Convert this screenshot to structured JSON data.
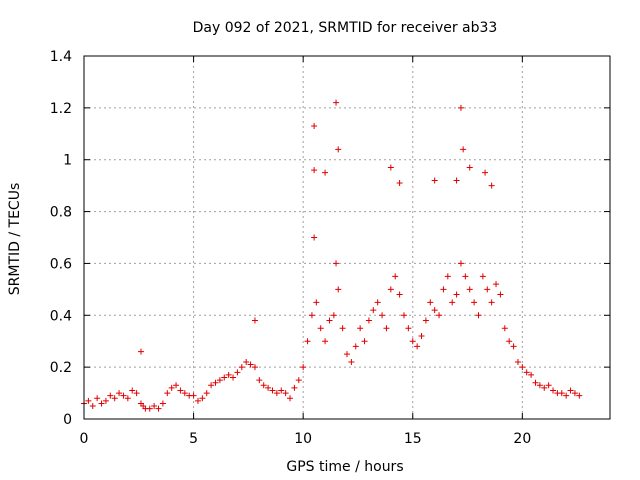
{
  "chart_data": {
    "type": "scatter",
    "title": "Day 092 of 2021, SRMTID for receiver ab33",
    "xlabel": "GPS time / hours",
    "ylabel": "SRMTID / TECUs",
    "xlim": [
      0,
      24
    ],
    "ylim": [
      0,
      1.4
    ],
    "x_ticks": [
      0,
      5,
      10,
      15,
      20
    ],
    "x_tick_labels": [
      "0",
      "5",
      "10",
      "15",
      "20"
    ],
    "y_ticks": [
      0,
      0.2,
      0.4,
      0.6,
      0.8,
      1.0,
      1.2,
      1.4
    ],
    "y_tick_labels": [
      "0",
      "0.2",
      "0.4",
      "0.6",
      "0.8",
      "1",
      "1.2",
      "1.4"
    ],
    "grid": true,
    "marker": "+",
    "color": "#e00000",
    "data_range_hours": [
      0,
      22.7
    ],
    "series": [
      {
        "name": "SRMTID",
        "x": [
          0.0,
          0.2,
          0.4,
          0.6,
          0.8,
          1.0,
          1.2,
          1.4,
          1.6,
          1.8,
          2.0,
          2.2,
          2.4,
          2.6,
          2.7,
          2.8,
          3.0,
          3.2,
          3.4,
          3.6,
          3.8,
          4.0,
          4.2,
          4.4,
          4.6,
          4.8,
          5.0,
          5.2,
          5.4,
          5.6,
          5.8,
          6.0,
          6.2,
          6.4,
          6.6,
          6.8,
          7.0,
          7.2,
          7.4,
          7.6,
          7.8,
          8.0,
          8.2,
          8.4,
          8.6,
          8.8,
          9.0,
          9.2,
          9.4,
          9.6,
          9.8,
          10.0,
          10.2,
          10.4,
          10.5,
          10.6,
          10.8,
          11.0,
          11.2,
          11.4,
          11.5,
          11.6,
          11.8,
          12.0,
          12.2,
          12.4,
          12.6,
          12.8,
          13.0,
          13.2,
          13.4,
          13.6,
          13.8,
          14.0,
          14.2,
          14.4,
          14.6,
          14.8,
          15.0,
          15.2,
          15.4,
          15.6,
          15.8,
          16.0,
          16.2,
          16.4,
          16.6,
          16.8,
          17.0,
          17.2,
          17.4,
          17.6,
          17.8,
          18.0,
          18.2,
          18.4,
          18.6,
          18.8,
          19.0,
          19.2,
          19.4,
          19.6,
          19.8,
          20.0,
          20.2,
          20.4,
          20.6,
          20.8,
          21.0,
          21.2,
          21.4,
          21.6,
          21.8,
          22.0,
          22.2,
          22.4,
          22.6,
          2.6,
          7.8,
          10.5,
          10.5,
          11.0,
          11.5,
          11.6,
          14.0,
          16.0,
          17.0,
          17.2,
          17.3,
          18.3,
          18.6,
          17.6,
          14.4
        ],
        "y": [
          0.06,
          0.07,
          0.05,
          0.08,
          0.06,
          0.07,
          0.09,
          0.08,
          0.1,
          0.09,
          0.08,
          0.11,
          0.1,
          0.06,
          0.05,
          0.04,
          0.04,
          0.05,
          0.04,
          0.06,
          0.1,
          0.12,
          0.13,
          0.11,
          0.1,
          0.09,
          0.09,
          0.07,
          0.08,
          0.1,
          0.13,
          0.14,
          0.15,
          0.16,
          0.17,
          0.16,
          0.18,
          0.2,
          0.22,
          0.21,
          0.2,
          0.15,
          0.13,
          0.12,
          0.11,
          0.1,
          0.11,
          0.1,
          0.08,
          0.12,
          0.15,
          0.2,
          0.3,
          0.4,
          0.7,
          0.45,
          0.35,
          0.3,
          0.38,
          0.4,
          0.6,
          0.5,
          0.35,
          0.25,
          0.22,
          0.28,
          0.35,
          0.3,
          0.38,
          0.42,
          0.45,
          0.4,
          0.35,
          0.5,
          0.55,
          0.48,
          0.4,
          0.35,
          0.3,
          0.28,
          0.32,
          0.38,
          0.45,
          0.42,
          0.4,
          0.5,
          0.55,
          0.45,
          0.48,
          0.6,
          0.55,
          0.5,
          0.45,
          0.4,
          0.55,
          0.5,
          0.45,
          0.52,
          0.48,
          0.35,
          0.3,
          0.28,
          0.22,
          0.2,
          0.18,
          0.17,
          0.14,
          0.13,
          0.12,
          0.13,
          0.11,
          0.1,
          0.1,
          0.09,
          0.11,
          0.1,
          0.09,
          0.26,
          0.38,
          1.13,
          0.96,
          0.95,
          1.22,
          1.04,
          0.97,
          0.92,
          0.92,
          1.2,
          1.04,
          0.95,
          0.9,
          0.97,
          0.91
        ]
      }
    ]
  }
}
